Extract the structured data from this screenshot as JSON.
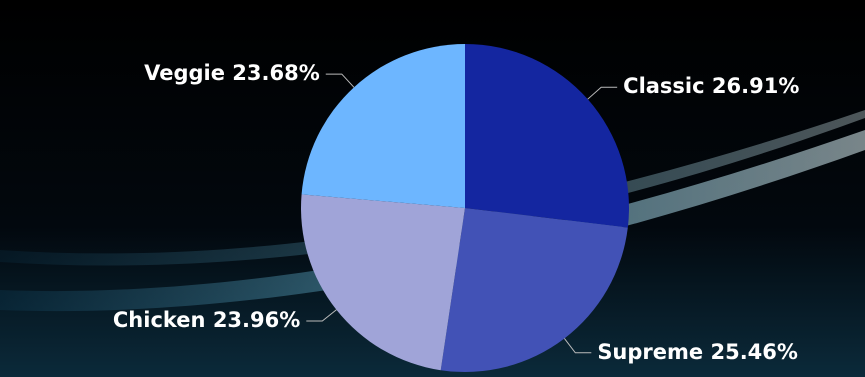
{
  "chart_data": {
    "type": "pie",
    "categories": [
      "Classic",
      "Supreme",
      "Chicken",
      "Veggie"
    ],
    "values": [
      26.91,
      25.46,
      23.96,
      23.68
    ],
    "value_labels": [
      "26.91%",
      "25.46%",
      "23.96%",
      "23.68%"
    ],
    "colors": [
      "#1426a0",
      "#4252b6",
      "#a0a4d8",
      "#6db6ff"
    ]
  }
}
